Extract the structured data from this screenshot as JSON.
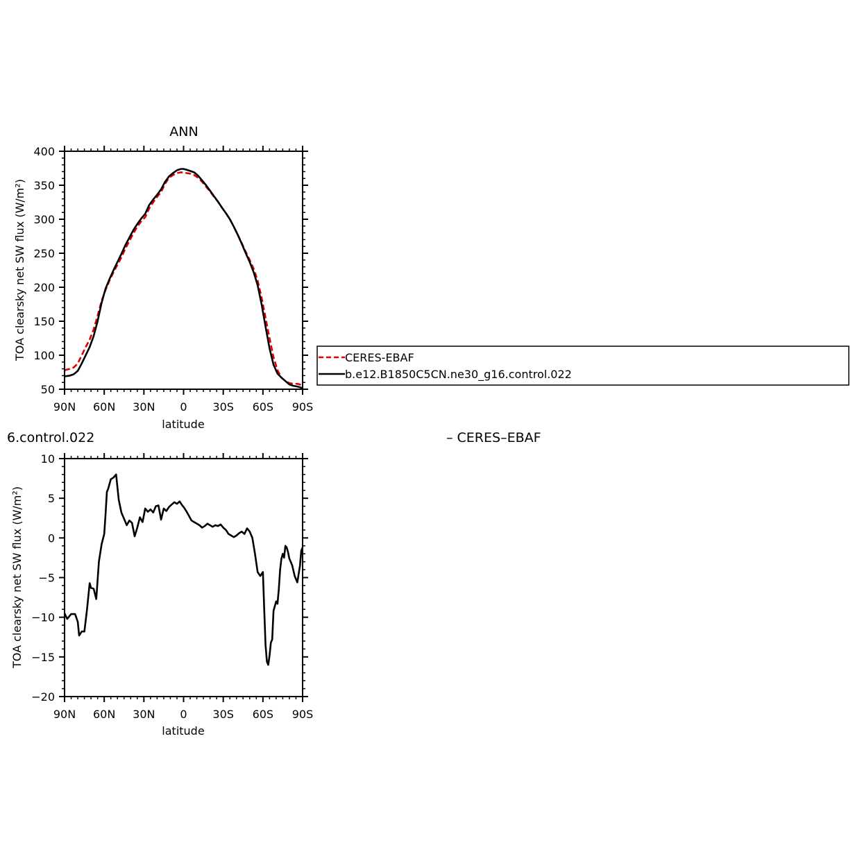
{
  "chart_data": [
    {
      "type": "line",
      "title": "ANN",
      "xlabel": "latitude",
      "ylabel": "TOA clearsky net SW flux (W/m²)",
      "xlim": [
        90,
        -90
      ],
      "ylim": [
        50,
        400
      ],
      "x_ticks": [
        90,
        60,
        30,
        0,
        -30,
        -60,
        -90
      ],
      "x_tick_labels": [
        "90N",
        "60N",
        "30N",
        "0",
        "30S",
        "60S",
        "90S"
      ],
      "y_ticks": [
        50,
        100,
        150,
        200,
        250,
        300,
        350,
        400
      ],
      "y_tick_labels": [
        "50",
        "100",
        "150",
        "200",
        "250",
        "300",
        "350",
        "400"
      ],
      "legend": {
        "placement": "right",
        "entries": [
          "CERES-EBAF",
          "b.e12.B1850C5CN.ne30_g16.control.022"
        ]
      },
      "series": [
        {
          "name": "CERES-EBAF",
          "color": "#e00000",
          "dash": "dashed",
          "x": [
            90,
            86,
            83,
            80,
            77,
            74,
            71,
            68,
            65,
            62,
            59,
            56,
            53,
            50,
            47,
            44,
            41,
            38,
            35,
            32,
            29,
            26,
            23,
            20,
            17,
            14,
            11,
            8,
            5,
            2,
            0,
            -2,
            -5,
            -8,
            -11,
            -14,
            -17,
            -20,
            -23,
            -26,
            -29,
            -32,
            -35,
            -38,
            -41,
            -44,
            -47,
            -50,
            -53,
            -56,
            -59,
            -62,
            -65,
            -68,
            -71,
            -74,
            -77,
            -80,
            -83,
            -86,
            -88,
            -90
          ],
          "values": [
            78,
            80,
            82,
            88,
            100,
            112,
            123,
            138,
            158,
            180,
            196,
            210,
            222,
            233,
            244,
            257,
            268,
            279,
            289,
            297,
            303,
            316,
            325,
            333,
            340,
            352,
            361,
            365,
            368,
            369,
            369,
            368,
            367,
            365,
            361,
            355,
            348,
            341,
            333,
            326,
            317,
            309,
            300,
            289,
            277,
            265,
            252,
            240,
            227,
            210,
            185,
            155,
            125,
            97,
            78,
            67,
            62,
            59,
            58,
            58,
            57,
            54
          ]
        },
        {
          "name": "b.e12.B1850C5CN.ne30_g16.control.022",
          "color": "#000000",
          "dash": "solid",
          "x": [
            90,
            86,
            83,
            80,
            77,
            74,
            71,
            68,
            65,
            62,
            59,
            56,
            53,
            50,
            47,
            44,
            41,
            38,
            35,
            32,
            29,
            26,
            23,
            20,
            17,
            14,
            11,
            8,
            5,
            2,
            0,
            -2,
            -5,
            -8,
            -11,
            -14,
            -17,
            -20,
            -23,
            -26,
            -29,
            -32,
            -35,
            -38,
            -41,
            -44,
            -47,
            -50,
            -53,
            -56,
            -59,
            -62,
            -65,
            -68,
            -71,
            -74,
            -77,
            -80,
            -83,
            -86,
            -88,
            -90
          ],
          "values": [
            69,
            70,
            72,
            77,
            88,
            100,
            112,
            128,
            150,
            177,
            198,
            212,
            225,
            237,
            249,
            262,
            273,
            284,
            293,
            301,
            308,
            321,
            329,
            336,
            344,
            355,
            363,
            368,
            372,
            374,
            374,
            373,
            371,
            369,
            364,
            357,
            350,
            342,
            334,
            326,
            317,
            309,
            300,
            289,
            277,
            264,
            250,
            237,
            222,
            203,
            175,
            142,
            110,
            86,
            73,
            67,
            62,
            57,
            55,
            54,
            53,
            51
          ]
        }
      ]
    },
    {
      "type": "line",
      "title": "6.control.022",
      "title_right": "– CERES–EBAF",
      "xlabel": "latitude",
      "ylabel": "TOA clearsky net SW flux (W/m²)",
      "xlim": [
        90,
        -90
      ],
      "ylim": [
        -20,
        10
      ],
      "x_ticks": [
        90,
        60,
        30,
        0,
        -30,
        -60,
        -90
      ],
      "x_tick_labels": [
        "90N",
        "60N",
        "30N",
        "0",
        "30S",
        "60S",
        "90S"
      ],
      "y_ticks": [
        -20,
        -15,
        -10,
        -5,
        0,
        5,
        10
      ],
      "y_tick_labels": [
        "−20",
        "−15",
        "−10",
        "−5",
        "0",
        "5",
        "10"
      ],
      "series": [
        {
          "color": "#000000",
          "x": [
            90,
            88,
            85,
            82,
            80,
            79,
            77,
            75,
            73,
            71,
            70,
            68,
            66,
            64,
            62,
            60,
            59,
            58,
            57,
            55,
            53,
            51,
            49,
            47,
            45,
            43,
            41,
            39,
            37,
            35,
            33,
            31,
            29,
            27,
            25,
            23,
            21,
            19,
            17,
            15,
            13,
            11,
            9,
            7,
            5,
            3,
            1,
            0,
            -2,
            -4,
            -6,
            -8,
            -10,
            -12,
            -14,
            -16,
            -18,
            -20,
            -22,
            -24,
            -26,
            -28,
            -30,
            -32,
            -34,
            -36,
            -38,
            -40,
            -42,
            -44,
            -46,
            -48,
            -50,
            -52,
            -54,
            -56,
            -58,
            -60,
            -61,
            -62,
            -63,
            -64,
            -65,
            -66,
            -67,
            -68,
            -70,
            -71,
            -72,
            -73,
            -74,
            -75,
            -76,
            -77,
            -78,
            -79,
            -80,
            -82,
            -84,
            -86,
            -88,
            -89,
            -90
          ],
          "values": [
            -9.5,
            -10.2,
            -9.6,
            -9.6,
            -10.6,
            -12.3,
            -11.8,
            -11.8,
            -9.0,
            -5.7,
            -6.3,
            -6.4,
            -7.7,
            -3.0,
            -0.8,
            0.5,
            3.0,
            5.8,
            6.2,
            7.4,
            7.6,
            8.0,
            4.8,
            3.2,
            2.4,
            1.6,
            2.2,
            1.9,
            0.2,
            1.3,
            2.6,
            2.0,
            3.7,
            3.3,
            3.6,
            3.2,
            4.0,
            4.1,
            2.3,
            3.7,
            3.4,
            3.9,
            4.2,
            4.5,
            4.3,
            4.6,
            4.1,
            3.9,
            3.4,
            2.8,
            2.2,
            2.0,
            1.8,
            1.6,
            1.3,
            1.5,
            1.8,
            1.6,
            1.4,
            1.6,
            1.5,
            1.7,
            1.3,
            1.0,
            0.5,
            0.3,
            0.1,
            0.3,
            0.6,
            0.8,
            0.5,
            1.2,
            0.8,
            0.0,
            -2.0,
            -4.3,
            -4.8,
            -4.3,
            -9.0,
            -13.5,
            -15.6,
            -16.0,
            -14.8,
            -13.2,
            -12.8,
            -9.2,
            -8.0,
            -8.3,
            -6.5,
            -4.0,
            -2.6,
            -2.0,
            -2.5,
            -1.0,
            -1.2,
            -1.8,
            -2.6,
            -3.4,
            -4.8,
            -5.6,
            -3.5,
            -1.6,
            -1.2
          ]
        }
      ]
    }
  ]
}
